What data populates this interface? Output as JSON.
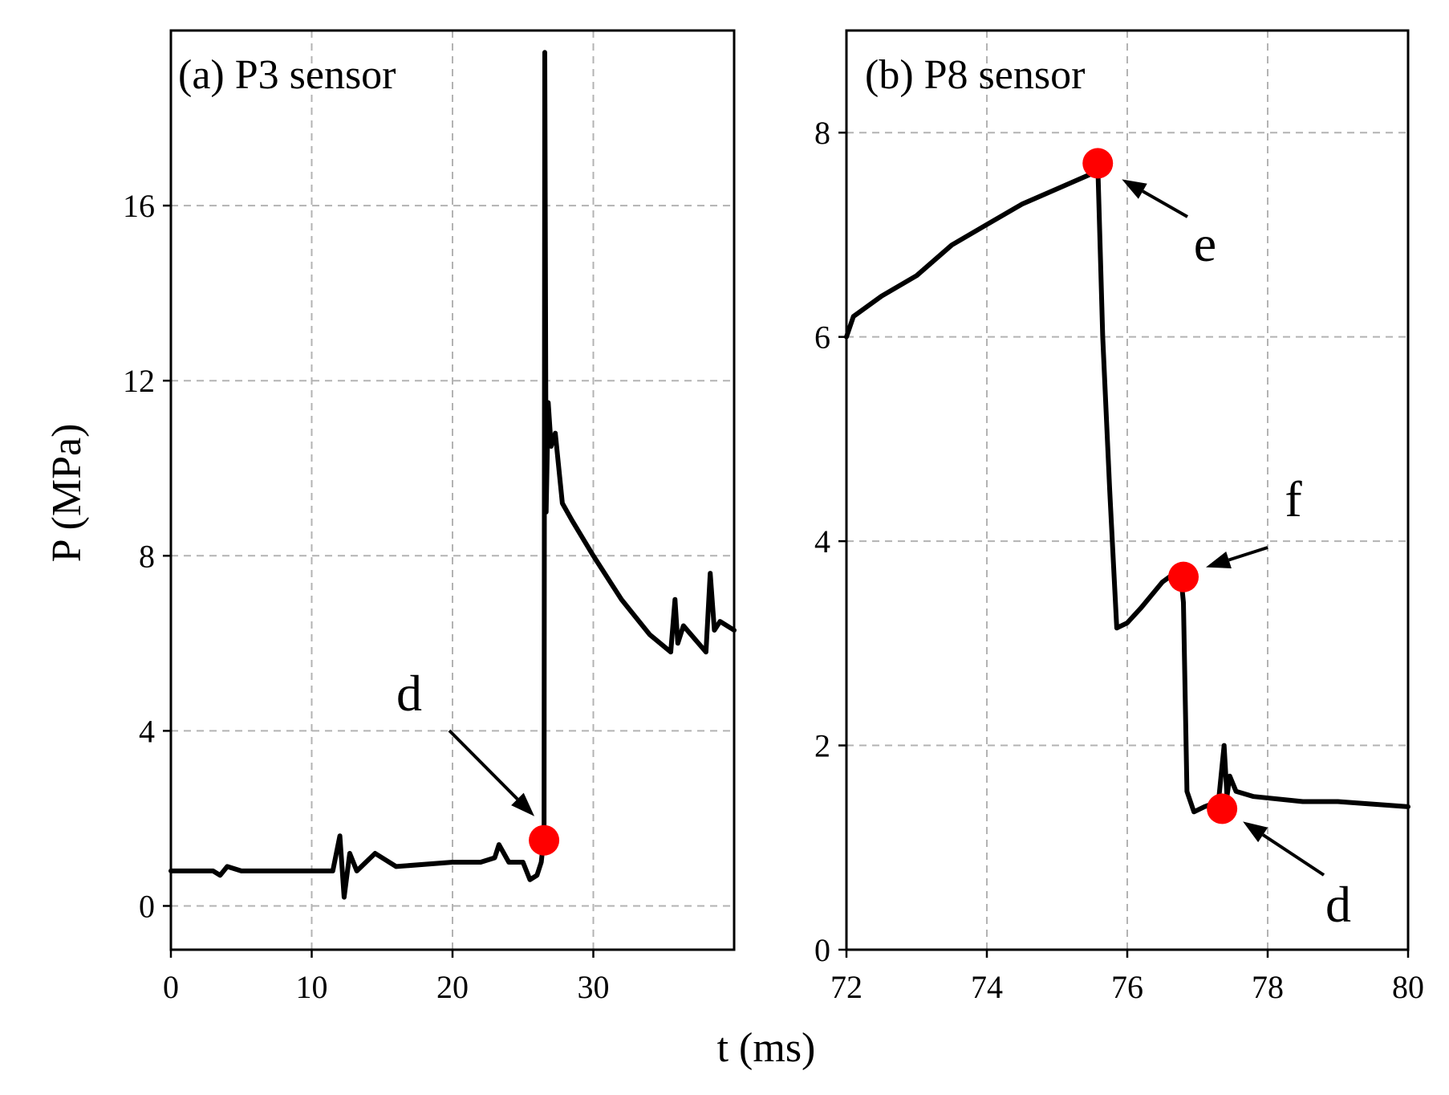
{
  "chart_data": [
    {
      "type": "line",
      "title": "(a) P3 sensor",
      "xlabel": "t (ms)",
      "ylabel": "P (MPa)",
      "xlim": [
        0,
        40
      ],
      "ylim": [
        -1,
        20
      ],
      "xticks": [
        0,
        10,
        20,
        30
      ],
      "xtick_labels": [
        "0",
        "10",
        "20",
        "30"
      ],
      "yticks": [
        0,
        4,
        8,
        12,
        16
      ],
      "ytick_labels": [
        "0",
        "4",
        "8",
        "12",
        "16"
      ],
      "grid": true,
      "series": [
        {
          "name": "P3",
          "color": "#000000",
          "x": [
            0,
            3,
            3.5,
            4,
            5,
            6,
            8,
            10,
            11.5,
            12,
            12.3,
            12.7,
            13.2,
            14.5,
            16,
            20,
            22,
            23,
            23.3,
            24,
            25,
            25.5,
            26,
            26.3,
            26.5,
            26.55,
            26.65,
            26.8,
            27,
            27.3,
            27.8,
            28.5,
            30,
            32,
            34,
            35.5,
            35.8,
            36,
            36.4,
            38,
            38.3,
            38.6,
            39,
            40
          ],
          "y": [
            0.8,
            0.8,
            0.7,
            0.9,
            0.8,
            0.8,
            0.8,
            0.8,
            0.8,
            1.6,
            0.2,
            1.2,
            0.8,
            1.2,
            0.9,
            1.0,
            1.0,
            1.1,
            1.4,
            1.0,
            1.0,
            0.6,
            0.7,
            1.0,
            1.6,
            19.5,
            9.0,
            11.5,
            10.5,
            10.8,
            9.2,
            8.8,
            8.0,
            7.0,
            6.2,
            5.8,
            7.0,
            6.0,
            6.4,
            5.8,
            7.6,
            6.3,
            6.5,
            6.3
          ]
        }
      ],
      "markers": [
        {
          "label": "d",
          "x": 26.5,
          "y": 1.5,
          "color": "#ff0000"
        }
      ],
      "annotations": [
        "d"
      ]
    },
    {
      "type": "line",
      "title": "(b) P8 sensor",
      "xlabel": "t (ms)",
      "ylabel": "",
      "xlim": [
        72,
        80
      ],
      "ylim": [
        0,
        9
      ],
      "xticks": [
        72,
        74,
        76,
        78,
        80
      ],
      "xtick_labels": [
        "72",
        "74",
        "76",
        "78",
        "80"
      ],
      "yticks": [
        0,
        2,
        4,
        6,
        8
      ],
      "ytick_labels": [
        "0",
        "2",
        "4",
        "6",
        "8"
      ],
      "grid": true,
      "series": [
        {
          "name": "P8",
          "color": "#000000",
          "x": [
            72,
            72.1,
            72.5,
            73,
            73.5,
            74,
            74.5,
            75,
            75.5,
            75.58,
            75.65,
            75.75,
            75.85,
            76,
            76.2,
            76.5,
            76.7,
            76.75,
            76.8,
            76.85,
            76.95,
            77.1,
            77.3,
            77.38,
            77.42,
            77.46,
            77.55,
            77.8,
            78.5,
            79,
            80
          ],
          "y": [
            6.0,
            6.2,
            6.4,
            6.6,
            6.9,
            7.1,
            7.3,
            7.45,
            7.6,
            7.7,
            6.0,
            4.5,
            3.15,
            3.2,
            3.35,
            3.6,
            3.7,
            3.75,
            3.4,
            1.55,
            1.35,
            1.4,
            1.45,
            2.0,
            1.5,
            1.7,
            1.55,
            1.5,
            1.45,
            1.45,
            1.4
          ]
        }
      ],
      "markers": [
        {
          "label": "e",
          "x": 75.58,
          "y": 7.7,
          "color": "#ff0000"
        },
        {
          "label": "f",
          "x": 76.8,
          "y": 3.65,
          "color": "#ff0000"
        },
        {
          "label": "d",
          "x": 77.35,
          "y": 1.38,
          "color": "#ff0000"
        }
      ],
      "annotations": [
        "e",
        "f",
        "d"
      ]
    }
  ],
  "shared_xlabel": "t (ms)"
}
